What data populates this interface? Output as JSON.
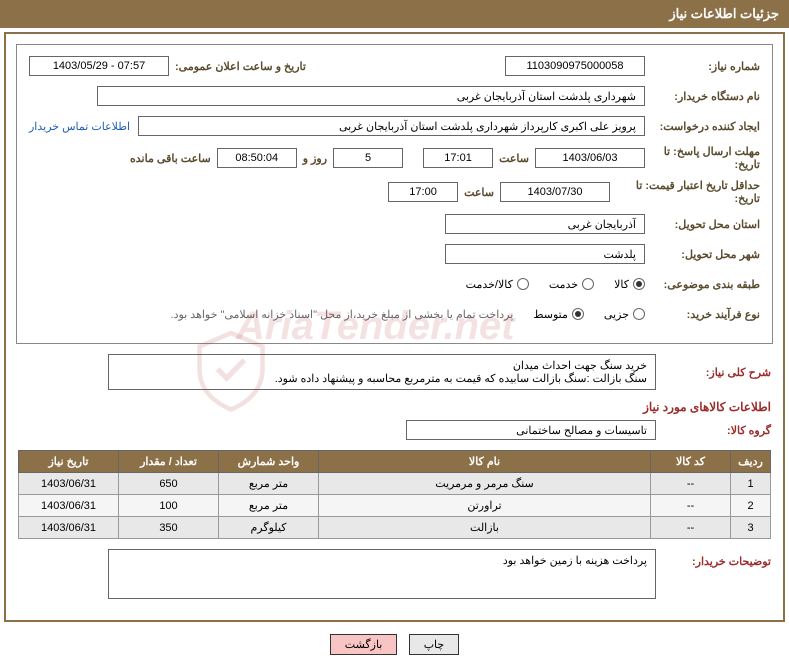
{
  "header": {
    "title": "جزئیات اطلاعات نیاز"
  },
  "fields": {
    "need_number": {
      "label": "شماره نیاز:",
      "value": "1103090975000058"
    },
    "announce_datetime": {
      "label": "تاریخ و ساعت اعلان عمومی:",
      "value": "07:57 - 1403/05/29"
    },
    "buyer_org": {
      "label": "نام دستگاه خریدار:",
      "value": "شهرداری پلدشت استان آذربایجان غربی"
    },
    "requester": {
      "label": "ایجاد کننده درخواست:",
      "value": "پرویز علی اکبری کارپرداز شهرداری پلدشت استان آذربایجان غربی"
    },
    "contact_link": "اطلاعات تماس خریدار",
    "response_deadline": {
      "label": "مهلت ارسال پاسخ: تا تاریخ:",
      "date": "1403/06/03",
      "time_label": "ساعت",
      "time": "17:01",
      "days": "5",
      "days_label": "روز و",
      "remaining": "08:50:04",
      "remaining_label": "ساعت باقی مانده"
    },
    "price_validity": {
      "label": "حداقل تاریخ اعتبار قیمت: تا تاریخ:",
      "date": "1403/07/30",
      "time_label": "ساعت",
      "time": "17:00"
    },
    "delivery_province": {
      "label": "استان محل تحویل:",
      "value": "آذربایجان غربی"
    },
    "delivery_city": {
      "label": "شهر محل تحویل:",
      "value": "پلدشت"
    },
    "subject_class": {
      "label": "طبقه بندی موضوعی:",
      "options": [
        "کالا",
        "خدمت",
        "کالا/خدمت"
      ],
      "selected": 0
    },
    "purchase_type": {
      "label": "نوع فرآیند خرید:",
      "options": [
        "جزیی",
        "متوسط"
      ],
      "selected": 1,
      "note": "پرداخت تمام یا بخشی از مبلغ خرید،از محل \"اسناد خزانه اسلامی\" خواهد بود."
    },
    "need_summary": {
      "label": "شرح کلی نیاز:",
      "line1": "خرید سنگ جهت احداث میدان",
      "line2": "سنگ بازالت :سنگ بازالت سابیده  که قیمت به مترمربع محاسبه و پیشنهاد داده شود."
    },
    "goods_info_title": "اطلاعات کالاهای مورد نیاز",
    "goods_group": {
      "label": "گروه کالا:",
      "value": "تاسیسات و مصالح ساختمانی"
    },
    "buyer_notes": {
      "label": "توضیحات خریدار:",
      "value": "پرداخت هزینه  با زمین خواهد بود"
    }
  },
  "table": {
    "headers": [
      "ردیف",
      "کد کالا",
      "نام کالا",
      "واحد شمارش",
      "تعداد / مقدار",
      "تاریخ نیاز"
    ],
    "rows": [
      [
        "1",
        "--",
        "سنگ مرمر و مرمریت",
        "متر مربع",
        "650",
        "1403/06/31"
      ],
      [
        "2",
        "--",
        "تراورتن",
        "متر مربع",
        "100",
        "1403/06/31"
      ],
      [
        "3",
        "--",
        "بازالت",
        "کیلوگرم",
        "350",
        "1403/06/31"
      ]
    ]
  },
  "buttons": {
    "print": "چاپ",
    "back": "بازگشت"
  },
  "watermark": "AriaTender.net",
  "colors": {
    "primary": "#8c7047",
    "danger_text": "#9b2c2c",
    "link": "#1a5fb4"
  }
}
